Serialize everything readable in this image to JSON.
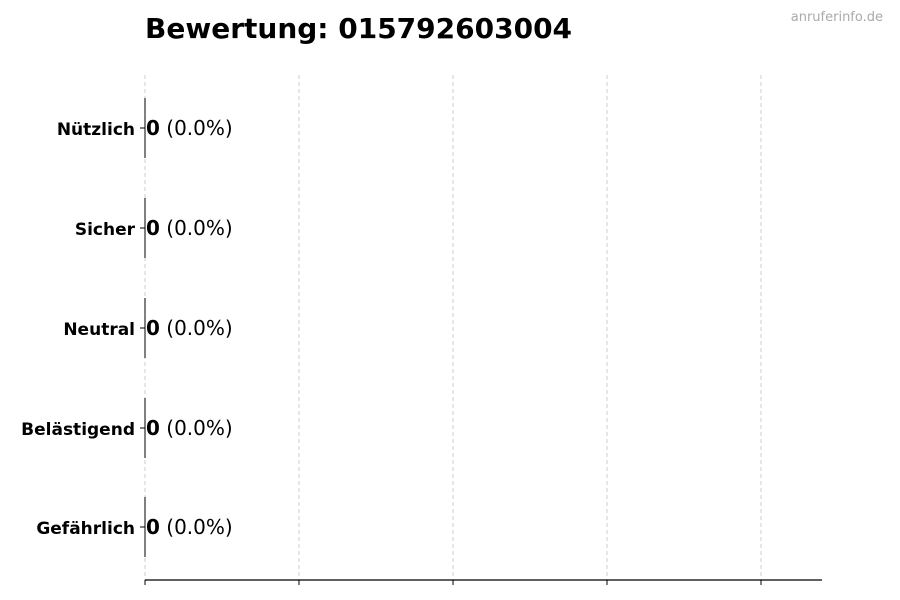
{
  "chart_data": {
    "type": "bar",
    "orientation": "horizontal",
    "title": "Bewertung: 015792603004",
    "watermark": "anruferinfo.de",
    "categories": [
      "Nützlich",
      "Sicher",
      "Neutral",
      "Belästigend",
      "Gefährlich"
    ],
    "values": [
      0,
      0,
      0,
      0,
      0
    ],
    "percentages": [
      "0.0%",
      "0.0%",
      "0.0%",
      "0.0%",
      "0.0%"
    ],
    "data_labels": [
      {
        "count": "0",
        "pct": "(0.0%)"
      },
      {
        "count": "0",
        "pct": "(0.0%)"
      },
      {
        "count": "0",
        "pct": "(0.0%)"
      },
      {
        "count": "0",
        "pct": "(0.0%)"
      },
      {
        "count": "0",
        "pct": "(0.0%)"
      }
    ],
    "xlabel": "",
    "ylabel": "",
    "x_tick_labels_shown": false,
    "grid": "vertical dashed",
    "colors": {
      "bar_edge": "#000000",
      "grid": "#cccccc",
      "watermark": "#aaaaaa"
    }
  }
}
